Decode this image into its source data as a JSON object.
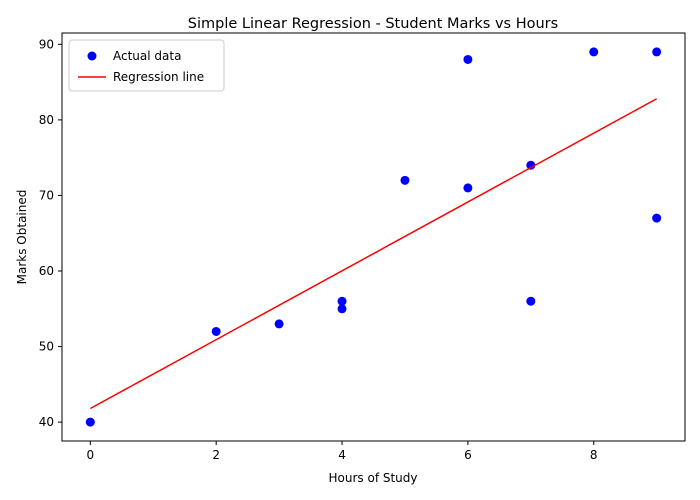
{
  "chart_data": {
    "type": "scatter",
    "title": "Simple Linear Regression - Student Marks vs Hours",
    "xlabel": "Hours of Study",
    "ylabel": "Marks Obtained",
    "xlim": [
      -0.45,
      9.45
    ],
    "ylim": [
      37.5,
      91.5
    ],
    "x_ticks": [
      0,
      2,
      4,
      6,
      8
    ],
    "y_ticks": [
      40,
      50,
      60,
      70,
      80,
      90
    ],
    "grid": false,
    "legend_position": "top-left",
    "series": [
      {
        "name": "Actual data",
        "kind": "scatter",
        "color": "#0000ff",
        "points": [
          {
            "x": 0,
            "y": 40
          },
          {
            "x": 2,
            "y": 52
          },
          {
            "x": 3,
            "y": 53
          },
          {
            "x": 4,
            "y": 56
          },
          {
            "x": 4,
            "y": 55
          },
          {
            "x": 5,
            "y": 72
          },
          {
            "x": 6,
            "y": 88
          },
          {
            "x": 6,
            "y": 71
          },
          {
            "x": 7,
            "y": 74
          },
          {
            "x": 7,
            "y": 56
          },
          {
            "x": 8,
            "y": 89
          },
          {
            "x": 9,
            "y": 89
          },
          {
            "x": 9,
            "y": 67
          }
        ]
      },
      {
        "name": "Regression line",
        "kind": "line",
        "color": "#ff0000",
        "points": [
          {
            "x": 0,
            "y": 41.8
          },
          {
            "x": 9,
            "y": 82.8
          }
        ]
      }
    ]
  }
}
